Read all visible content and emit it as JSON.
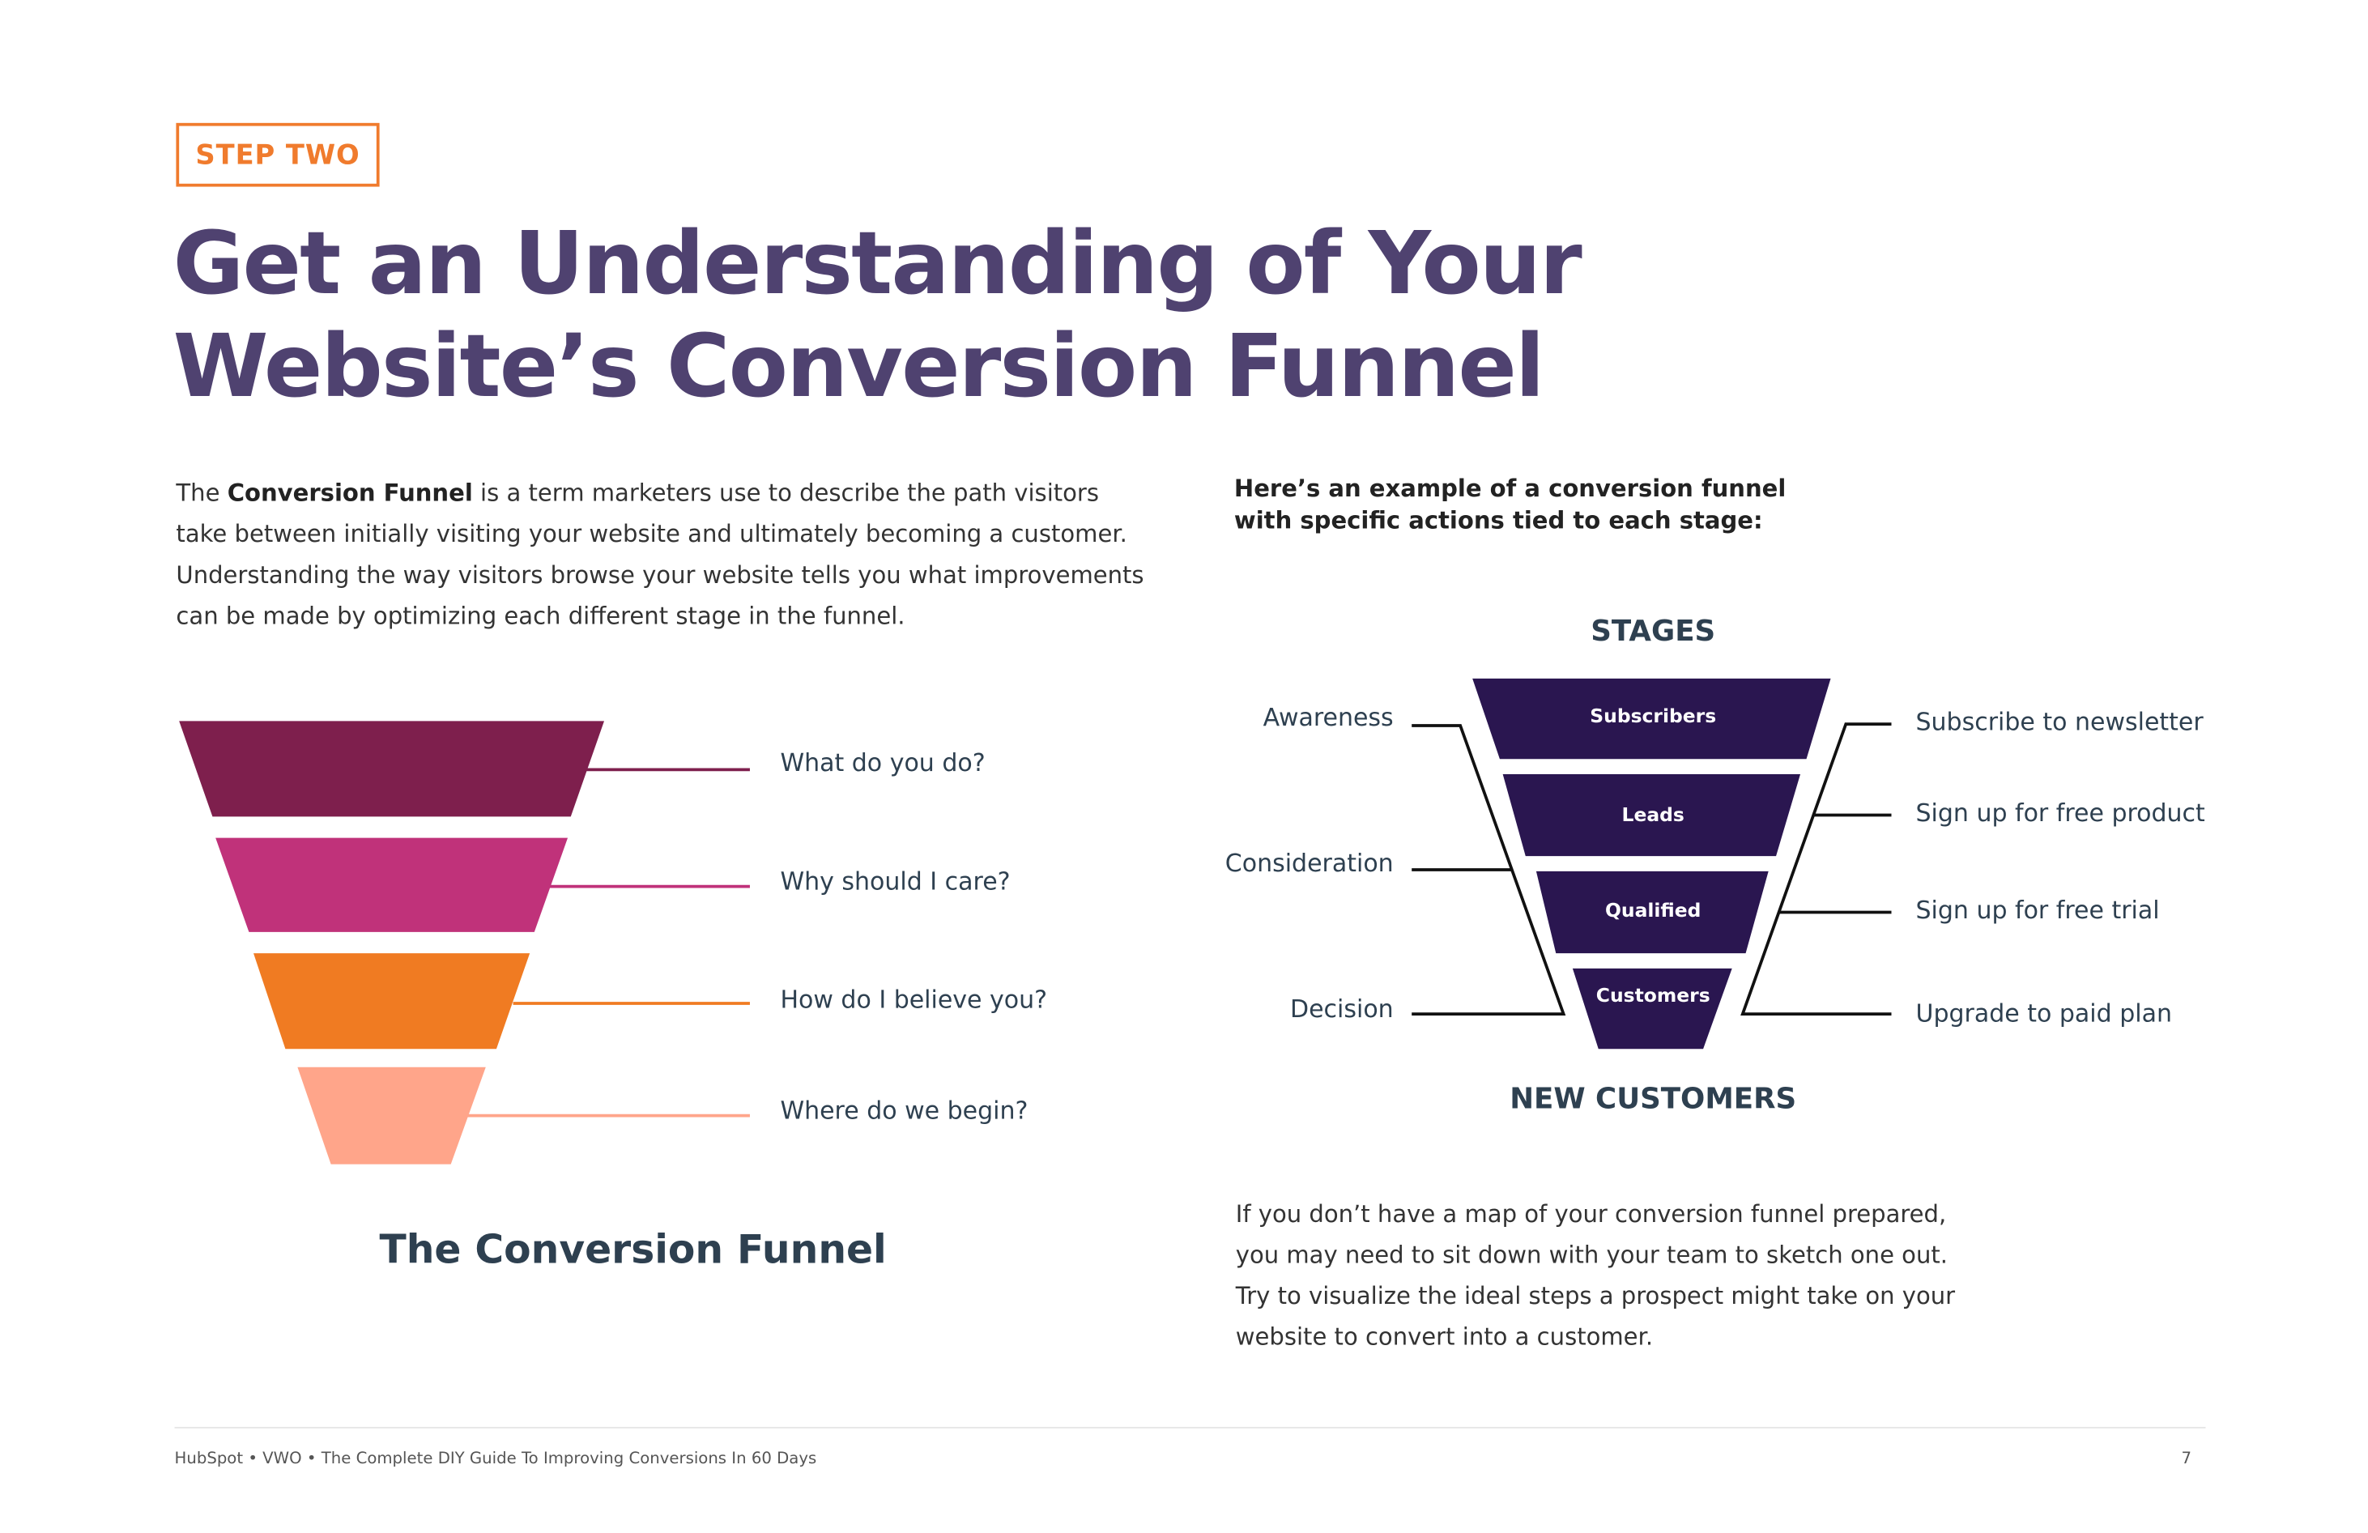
{
  "step_label": "STEP TWO",
  "title_line1": "Get an Understanding of Your",
  "title_line2": "Website’s Conversion Funnel",
  "intro": {
    "before": "The ",
    "bold": "Conversion Funnel",
    "after": " is a term marketers use to describe the path visitors take between initially visiting your website and ultimately becoming a customer. Understanding the way visitors browse your website tells you what improvements can be made by optimizing each different stage in the funnel."
  },
  "left_funnel": {
    "title": "The Conversion Funnel",
    "levels": [
      {
        "question": "What do you do?",
        "color": "#7E1F4D"
      },
      {
        "question": "Why should I care?",
        "color": "#C0327A"
      },
      {
        "question": "How do I believe you?",
        "color": "#F07B22"
      },
      {
        "question": "Where do we begin?",
        "color": "#FFA58A"
      }
    ]
  },
  "right_intro_line1": "Here’s an example of a conversion funnel",
  "right_intro_line2": "with specific actions tied to each stage:",
  "stages_heading": "STAGES",
  "stages_footer": "NEW CUSTOMERS",
  "funnel_color": "#2A1650",
  "stages": [
    "Subscribers",
    "Leads",
    "Qualified",
    "Customers"
  ],
  "phases": [
    "Awareness",
    "Consideration",
    "Decision"
  ],
  "actions": [
    "Subscribe to newsletter",
    "Sign up for free product",
    "Sign up for free trial",
    "Upgrade to paid plan"
  ],
  "bottom_text": "If you don’t have a map of your conversion funnel prepared, you may need to sit down with your team to sketch one out. Try to visualize the ideal steps a prospect might take on your website to convert into a customer.",
  "footer": "HubSpot • VWO • The Complete DIY Guide To Improving Conversions In 60 Days",
  "page_number": "7",
  "accent_color": "#F07B2D",
  "title_color": "#4F4270"
}
